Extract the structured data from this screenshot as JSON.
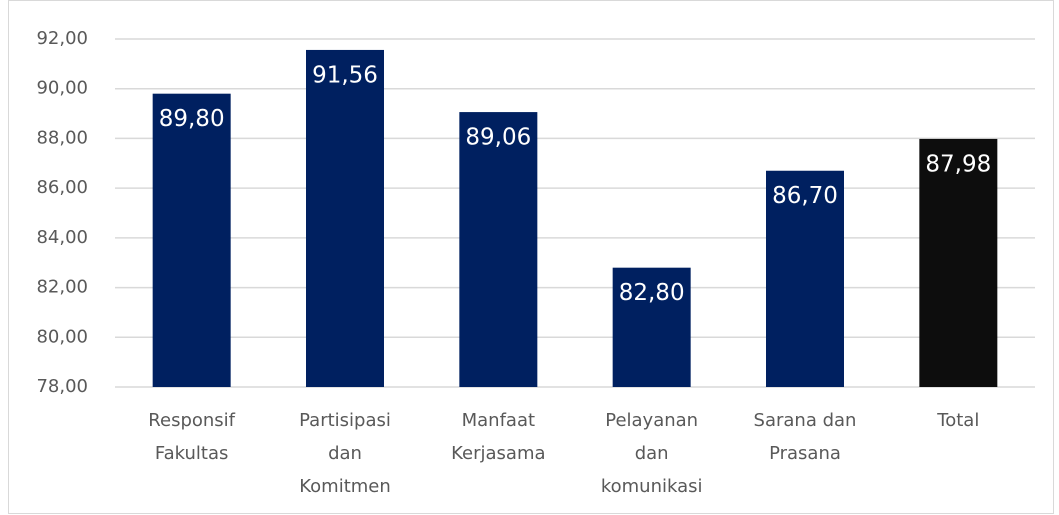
{
  "chart_data": {
    "type": "bar",
    "categories": [
      [
        "Responsif",
        "Fakultas"
      ],
      [
        "Partisipasi",
        "dan",
        "Komitmen"
      ],
      [
        "Manfaat",
        "Kerjasama"
      ],
      [
        "Pelayanan",
        "dan",
        "komunikasi"
      ],
      [
        "Sarana dan",
        "Prasana"
      ],
      [
        "Total"
      ]
    ],
    "values": [
      89.8,
      91.56,
      89.06,
      82.8,
      86.7,
      87.98
    ],
    "value_labels": [
      "89,80",
      "91,56",
      "89,06",
      "82,80",
      "86,70",
      "87,98"
    ],
    "colors": [
      "#002060",
      "#002060",
      "#002060",
      "#002060",
      "#002060",
      "#0d0d0d"
    ],
    "ylim": [
      78,
      92
    ],
    "yticks": [
      {
        "value": 78,
        "label": "78,00"
      },
      {
        "value": 80,
        "label": "80,00"
      },
      {
        "value": 82,
        "label": "82,00"
      },
      {
        "value": 84,
        "label": "84,00"
      },
      {
        "value": 86,
        "label": "86,00"
      },
      {
        "value": 88,
        "label": "88,00"
      },
      {
        "value": 90,
        "label": "90,00"
      },
      {
        "value": 92,
        "label": "92,00"
      }
    ],
    "grid": true
  }
}
